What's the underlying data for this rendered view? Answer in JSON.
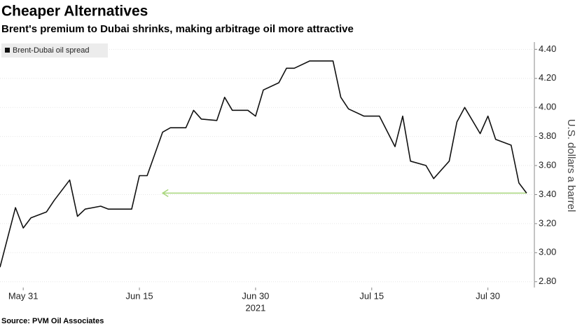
{
  "chart_data": {
    "type": "line",
    "title": "Cheaper Alternatives",
    "subtitle": "Brent's premium to Dubai shrinks, making arbitrage oil more attractive",
    "y_label": "U.S. dollars a barrel",
    "source": "Source: PVM Oil Associates",
    "x_year_label": "2021",
    "x": [
      "2021-05-28",
      "2021-05-30",
      "2021-05-31",
      "2021-06-01",
      "2021-06-03",
      "2021-06-04",
      "2021-06-06",
      "2021-06-07",
      "2021-06-08",
      "2021-06-10",
      "2021-06-11",
      "2021-06-14",
      "2021-06-15",
      "2021-06-16",
      "2021-06-18",
      "2021-06-19",
      "2021-06-21",
      "2021-06-22",
      "2021-06-23",
      "2021-06-25",
      "2021-06-26",
      "2021-06-27",
      "2021-06-29",
      "2021-06-30",
      "2021-07-01",
      "2021-07-03",
      "2021-07-04",
      "2021-07-05",
      "2021-07-07",
      "2021-07-10",
      "2021-07-11",
      "2021-07-12",
      "2021-07-14",
      "2021-07-16",
      "2021-07-18",
      "2021-07-19",
      "2021-07-20",
      "2021-07-22",
      "2021-07-23",
      "2021-07-25",
      "2021-07-26",
      "2021-07-27",
      "2021-07-29",
      "2021-07-30",
      "2021-07-31",
      "2021-08-02",
      "2021-08-03",
      "2021-08-04"
    ],
    "series": [
      {
        "name": "Brent-Dubai oil spread",
        "color": "#111111",
        "values": [
          2.9,
          3.31,
          3.17,
          3.24,
          3.28,
          3.36,
          3.5,
          3.25,
          3.3,
          3.32,
          3.3,
          3.3,
          3.53,
          3.53,
          3.83,
          3.86,
          3.86,
          3.98,
          3.92,
          3.91,
          4.07,
          3.98,
          3.98,
          3.94,
          4.12,
          4.17,
          4.27,
          4.27,
          4.32,
          4.32,
          4.07,
          3.99,
          3.94,
          3.94,
          3.73,
          3.94,
          3.63,
          3.6,
          3.51,
          3.63,
          3.9,
          4.0,
          3.82,
          3.94,
          3.78,
          3.74,
          3.48,
          3.41
        ]
      }
    ],
    "reference_line": {
      "value": 3.41,
      "from": "2021-06-18",
      "color": "#a8d67c"
    },
    "xlim": [
      "2021-05-28",
      "2021-08-05"
    ],
    "xticks": [
      {
        "value": "2021-05-31",
        "label": "May 31"
      },
      {
        "value": "2021-06-15",
        "label": "Jun 15"
      },
      {
        "value": "2021-06-30",
        "label": "Jun 30"
      },
      {
        "value": "2021-07-15",
        "label": "Jul 15"
      },
      {
        "value": "2021-07-30",
        "label": "Jul 30"
      }
    ],
    "ylim": [
      2.76,
      4.45
    ],
    "yticks": [
      {
        "value": 2.8,
        "label": "2.80"
      },
      {
        "value": 3.0,
        "label": "3.00"
      },
      {
        "value": 3.2,
        "label": "3.20"
      },
      {
        "value": 3.4,
        "label": "3.40"
      },
      {
        "value": 3.6,
        "label": "3.60"
      },
      {
        "value": 3.8,
        "label": "3.80"
      },
      {
        "value": 4.0,
        "label": "4.00"
      },
      {
        "value": 4.2,
        "label": "4.20"
      },
      {
        "value": 4.4,
        "label": "4.40"
      }
    ],
    "grid": true
  }
}
